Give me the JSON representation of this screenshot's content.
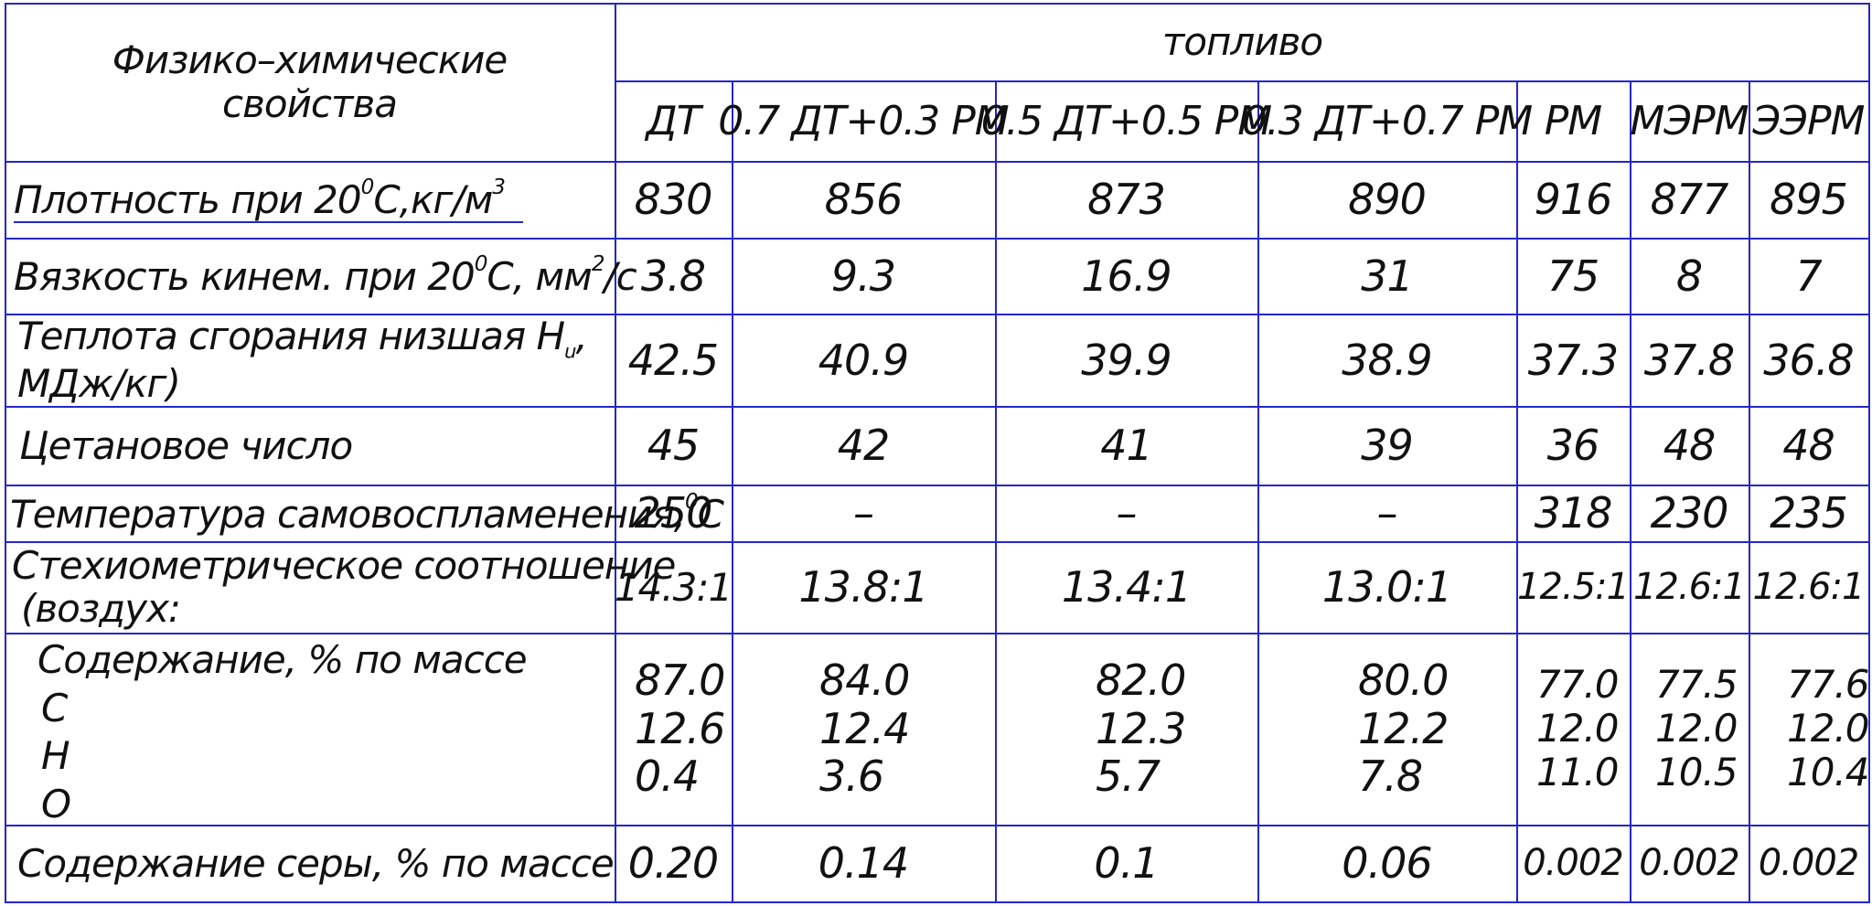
{
  "table": {
    "header_property": "Физико–химические свойства",
    "header_property_line1": "Физико–химические",
    "header_property_line2": "свойства",
    "header_fuel": "топливо",
    "columns": [
      "ДТ",
      "0.7 ДТ+0.3 РМ",
      "0.5 ДТ+0.5 РМ",
      "0.3 ДТ+0.7 РМ",
      "РМ",
      "МЭРМ",
      "ЭЭРМ"
    ],
    "rows": [
      {
        "label_parts": {
          "a": "Плотность при 20",
          "sup1": "0",
          "b": "С,кг/м",
          "sup2": "3"
        },
        "values": [
          "830",
          "856",
          "873",
          "890",
          "916",
          "877",
          "895"
        ]
      },
      {
        "label_parts": {
          "a": "Вязкость кинем. при 20",
          "sup1": "0",
          "b": "С, мм",
          "sup2": "2",
          "c": "/с"
        },
        "values": [
          "3.8",
          "9.3",
          "16.9",
          "31",
          "75",
          "8",
          "7"
        ]
      },
      {
        "label_line1_parts": {
          "a": "Теплота сгорания низшая Н",
          "sub": "u",
          "b": ","
        },
        "label_line2": "МДж/кг)",
        "values": [
          "42.5",
          "40.9",
          "39.9",
          "38.9",
          "37.3",
          "37.8",
          "36.8"
        ]
      },
      {
        "label": "Цетановое число",
        "values": [
          "45",
          "42",
          "41",
          "39",
          "36",
          "48",
          "48"
        ]
      },
      {
        "label_parts": {
          "a": "Температура самовоспламенения,",
          "sup1": "0",
          "b": "С"
        },
        "values": [
          "250",
          "–",
          "–",
          "–",
          "318",
          "230",
          "235"
        ]
      },
      {
        "label_line1": "Стехиометрическое соотношение",
        "label_line2": "(воздух:",
        "values": [
          "14.3:1",
          "13.8:1",
          "13.4:1",
          "13.0:1",
          "12.5:1",
          "12.6:1",
          "12.6:1"
        ]
      },
      {
        "label_title": "Содержание, % по массе",
        "elements": [
          "С",
          "Н",
          "О"
        ],
        "values": [
          [
            "87.0",
            "12.6",
            "0.4"
          ],
          [
            "84.0",
            "12.4",
            "3.6"
          ],
          [
            "82.0",
            "12.3",
            "5.7"
          ],
          [
            "80.0",
            "12.2",
            "7.8"
          ],
          [
            "77.0",
            "12.0",
            "11.0"
          ],
          [
            "77.5",
            "12.0",
            "10.5"
          ],
          [
            "77.6",
            "12.0",
            "10.4"
          ]
        ]
      },
      {
        "label": "Содержание серы, % по массе",
        "values": [
          "0.20",
          "0.14",
          "0.1",
          "0.06",
          "0.002",
          "0.002",
          "0.002"
        ]
      }
    ],
    "colors": {
      "grid": "#2626c8",
      "text": "#111111"
    }
  }
}
